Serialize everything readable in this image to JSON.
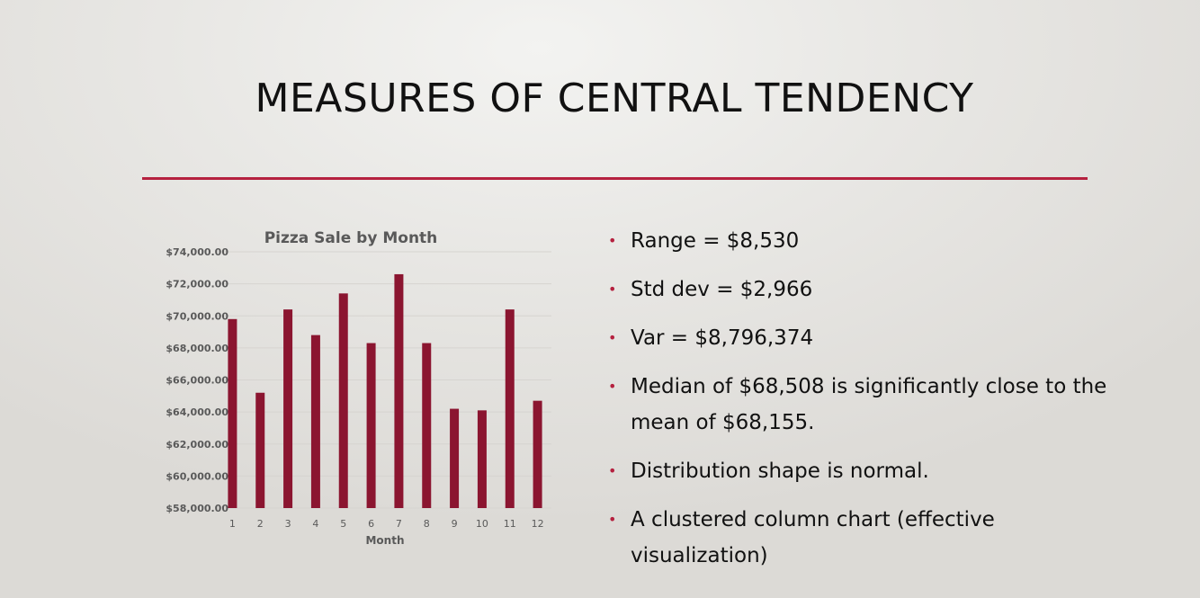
{
  "slide": {
    "title": "MEASURES OF CENTRAL TENDENCY",
    "accent_color": "#b5213f"
  },
  "bullets": [
    "Range = $8,530",
    "Std dev = $2,966",
    "Var = $8,796,374",
    "Median of $68,508 is significantly close to the mean of $68,155.",
    "Distribution shape is normal.",
    "A clustered column chart (effective visualization)"
  ],
  "chart_data": {
    "type": "bar",
    "title": "Pizza Sale by Month",
    "xlabel": "Month",
    "ylabel": "",
    "categories": [
      "1",
      "2",
      "3",
      "4",
      "5",
      "6",
      "7",
      "8",
      "9",
      "10",
      "11",
      "12"
    ],
    "values": [
      69800,
      65200,
      70400,
      68800,
      71400,
      68300,
      72600,
      68300,
      64200,
      64100,
      70400,
      64700
    ],
    "ylim": [
      58000,
      74000
    ],
    "yticks": [
      58000,
      60000,
      62000,
      64000,
      66000,
      68000,
      70000,
      72000,
      74000
    ],
    "ytick_labels": [
      "$58,000.00",
      "$60,000.00",
      "$62,000.00",
      "$64,000.00",
      "$66,000.00",
      "$68,000.00",
      "$70,000.00",
      "$72,000.00",
      "$74,000.00"
    ],
    "grid": true,
    "legend": "none",
    "bar_color": "#8b1530"
  }
}
